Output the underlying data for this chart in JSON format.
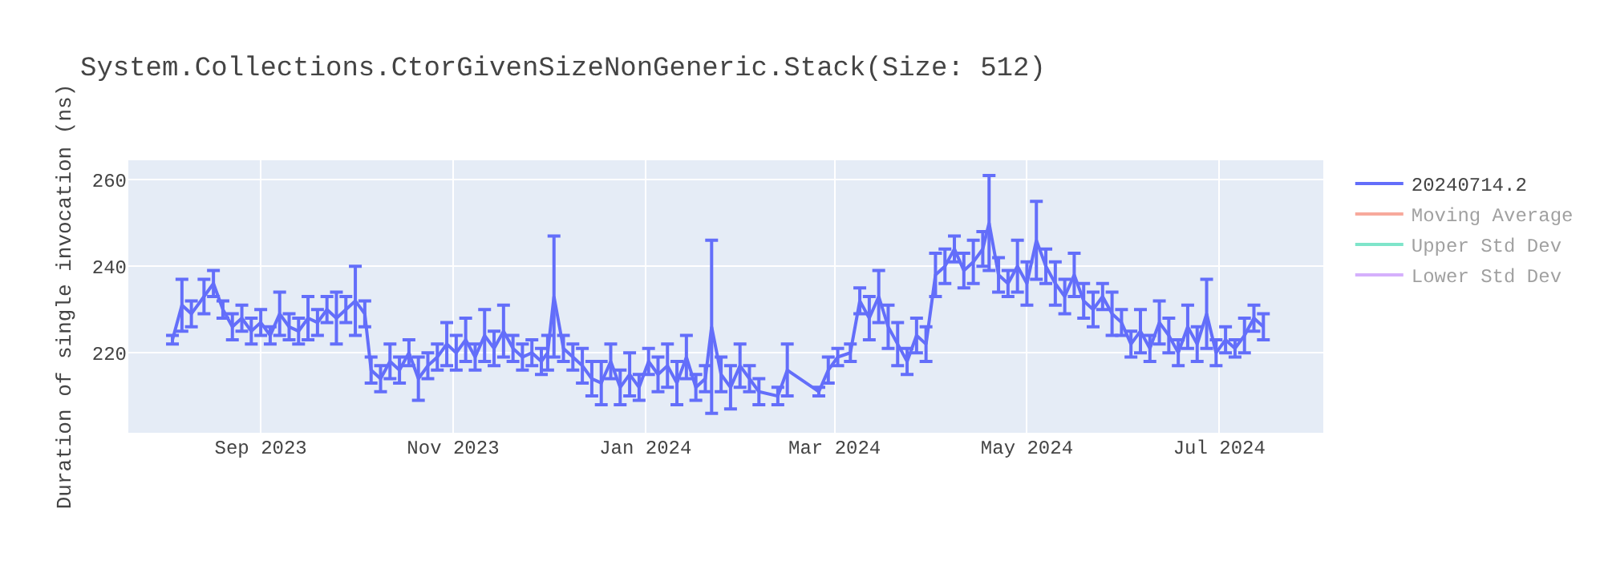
{
  "chart_data": {
    "type": "line",
    "title": "System.Collections.CtorGivenSizeNonGeneric.Stack(Size: 512)",
    "ylabel": "Duration of single invocation (ns)",
    "x": [
      "2023-08-04",
      "2023-08-07",
      "2023-08-10",
      "2023-08-14",
      "2023-08-17",
      "2023-08-20",
      "2023-08-23",
      "2023-08-26",
      "2023-08-29",
      "2023-09-01",
      "2023-09-04",
      "2023-09-07",
      "2023-09-10",
      "2023-09-13",
      "2023-09-16",
      "2023-09-19",
      "2023-09-22",
      "2023-09-25",
      "2023-09-28",
      "2023-10-01",
      "2023-10-04",
      "2023-10-06",
      "2023-10-09",
      "2023-10-12",
      "2023-10-15",
      "2023-10-18",
      "2023-10-21",
      "2023-10-24",
      "2023-10-27",
      "2023-10-30",
      "2023-11-02",
      "2023-11-05",
      "2023-11-08",
      "2023-11-11",
      "2023-11-14",
      "2023-11-17",
      "2023-11-20",
      "2023-11-23",
      "2023-11-26",
      "2023-11-29",
      "2023-12-01",
      "2023-12-03",
      "2023-12-06",
      "2023-12-09",
      "2023-12-12",
      "2023-12-15",
      "2023-12-18",
      "2023-12-21",
      "2023-12-24",
      "2023-12-27",
      "2023-12-30",
      "2024-01-02",
      "2024-01-05",
      "2024-01-08",
      "2024-01-11",
      "2024-01-14",
      "2024-01-17",
      "2024-01-20",
      "2024-01-22",
      "2024-01-25",
      "2024-01-28",
      "2024-01-31",
      "2024-02-03",
      "2024-02-06",
      "2024-02-12",
      "2024-02-15",
      "2024-02-25",
      "2024-02-28",
      "2024-03-02",
      "2024-03-06",
      "2024-03-09",
      "2024-03-12",
      "2024-03-15",
      "2024-03-18",
      "2024-03-21",
      "2024-03-24",
      "2024-03-27",
      "2024-03-30",
      "2024-04-02",
      "2024-04-05",
      "2024-04-08",
      "2024-04-11",
      "2024-04-14",
      "2024-04-17",
      "2024-04-19",
      "2024-04-22",
      "2024-04-25",
      "2024-04-28",
      "2024-05-01",
      "2024-05-04",
      "2024-05-07",
      "2024-05-10",
      "2024-05-13",
      "2024-05-16",
      "2024-05-19",
      "2024-05-22",
      "2024-05-25",
      "2024-05-28",
      "2024-05-31",
      "2024-06-03",
      "2024-06-06",
      "2024-06-09",
      "2024-06-12",
      "2024-06-15",
      "2024-06-18",
      "2024-06-21",
      "2024-06-24",
      "2024-06-27",
      "2024-06-30",
      "2024-07-03",
      "2024-07-06",
      "2024-07-09",
      "2024-07-12",
      "2024-07-15"
    ],
    "series": [
      {
        "name": "20240714.2",
        "color": "#636efa",
        "values": [
          223,
          231,
          229,
          233,
          236,
          230,
          226,
          228,
          225,
          227,
          224,
          229,
          226,
          225,
          228,
          227,
          230,
          228,
          230,
          232,
          229,
          216,
          214,
          218,
          216,
          220,
          214,
          217,
          219,
          222,
          220,
          223,
          219,
          224,
          221,
          225,
          221,
          219,
          220,
          218,
          220,
          233,
          221,
          219,
          217,
          214,
          213,
          218,
          212,
          215,
          212,
          218,
          215,
          217,
          213,
          219,
          212,
          214,
          226,
          215,
          212,
          217,
          214,
          211,
          210,
          216,
          211,
          216,
          219,
          220,
          232,
          228,
          233,
          226,
          222,
          218,
          224,
          222,
          238,
          240,
          244,
          239,
          241,
          244,
          250,
          238,
          236,
          240,
          236,
          246,
          240,
          236,
          233,
          238,
          232,
          230,
          233,
          229,
          227,
          222,
          225,
          221,
          227,
          224,
          220,
          226,
          222,
          229,
          220,
          223,
          221,
          224,
          228,
          226
        ],
        "errors": [
          1,
          6,
          3,
          4,
          3,
          2,
          3,
          3,
          3,
          3,
          2,
          5,
          3,
          3,
          5,
          3,
          3,
          6,
          3,
          8,
          3,
          3,
          3,
          4,
          3,
          3,
          5,
          3,
          3,
          5,
          4,
          5,
          3,
          6,
          4,
          6,
          3,
          3,
          3,
          3,
          4,
          14,
          3,
          3,
          4,
          4,
          5,
          4,
          4,
          5,
          3,
          3,
          4,
          5,
          5,
          5,
          3,
          3,
          20,
          4,
          5,
          5,
          3,
          3,
          2,
          6,
          1,
          3,
          2,
          2,
          3,
          5,
          6,
          5,
          5,
          3,
          4,
          4,
          5,
          4,
          3,
          4,
          5,
          4,
          11,
          4,
          3,
          6,
          5,
          9,
          4,
          5,
          4,
          5,
          4,
          4,
          3,
          5,
          3,
          3,
          5,
          3,
          5,
          4,
          3,
          5,
          4,
          8,
          3,
          3,
          2,
          4,
          3,
          3
        ]
      },
      {
        "name": "Moving Average",
        "color": "#ef553b",
        "values": [
          null,
          null,
          null,
          null,
          null,
          null,
          null,
          null,
          null,
          null,
          null,
          null,
          null,
          null,
          null,
          null,
          null,
          null,
          null,
          null,
          null,
          null,
          null,
          null,
          null,
          null,
          null,
          null,
          null,
          null,
          null,
          null,
          null,
          null,
          null,
          null,
          null,
          null,
          null,
          null,
          null,
          null,
          null,
          null,
          null,
          null,
          null,
          null,
          null,
          null,
          null,
          null,
          null,
          null,
          null,
          null,
          null,
          null,
          null,
          null,
          null,
          null,
          null,
          null,
          null,
          null,
          null,
          null,
          null,
          null,
          null,
          null,
          null,
          null,
          null,
          null,
          null,
          null,
          null,
          null,
          null,
          null,
          null,
          null,
          null,
          null,
          null,
          null,
          null,
          null,
          null,
          null,
          null,
          null,
          null,
          null,
          null,
          null,
          null,
          null,
          null,
          null,
          null,
          null,
          null,
          null,
          null,
          null,
          null,
          null,
          null,
          null,
          null,
          null
        ]
      },
      {
        "name": "Upper Std Dev",
        "color": "#00cc96",
        "values": [
          null,
          null,
          null,
          null,
          null,
          null,
          null,
          null,
          null,
          null,
          null,
          null,
          null,
          null,
          null,
          null,
          null,
          null,
          null,
          null,
          null,
          null,
          null,
          null,
          null,
          null,
          null,
          null,
          null,
          null,
          null,
          null,
          null,
          null,
          null,
          null,
          null,
          null,
          null,
          null,
          null,
          null,
          null,
          null,
          null,
          null,
          null,
          null,
          null,
          null,
          null,
          null,
          null,
          null,
          null,
          null,
          null,
          null,
          null,
          null,
          null,
          null,
          null,
          null,
          null,
          null,
          null,
          null,
          null,
          null,
          null,
          null,
          null,
          null,
          null,
          null,
          null,
          null,
          null,
          null,
          null,
          null,
          null,
          null,
          null,
          null,
          null,
          null,
          null,
          null,
          null,
          null,
          null,
          null,
          null,
          null,
          null,
          null,
          null,
          null,
          null,
          null,
          null,
          null,
          null,
          null,
          null,
          null,
          null,
          null,
          null,
          null,
          null,
          null
        ]
      },
      {
        "name": "Lower Std Dev",
        "color": "#ab63fa",
        "values": [
          null,
          null,
          null,
          null,
          null,
          null,
          null,
          null,
          null,
          null,
          null,
          null,
          null,
          null,
          null,
          null,
          null,
          null,
          null,
          null,
          null,
          null,
          null,
          null,
          null,
          null,
          null,
          null,
          null,
          null,
          null,
          null,
          null,
          null,
          null,
          null,
          null,
          null,
          null,
          null,
          null,
          null,
          null,
          null,
          null,
          null,
          null,
          null,
          null,
          null,
          null,
          null,
          null,
          null,
          null,
          null,
          null,
          null,
          null,
          null,
          null,
          null,
          null,
          null,
          null,
          null,
          null,
          null,
          null,
          null,
          null,
          null,
          null,
          null,
          null,
          null,
          null,
          null,
          null,
          null,
          null,
          null,
          null,
          null,
          null,
          null,
          null,
          null,
          null,
          null,
          null,
          null,
          null,
          null,
          null,
          null,
          null,
          null,
          null,
          null,
          null,
          null,
          null,
          null,
          null,
          null,
          null,
          null,
          null,
          null,
          null,
          null,
          null,
          null
        ]
      }
    ],
    "xlim": [
      "2023-07-21",
      "2024-08-03"
    ],
    "xticks": [
      {
        "value": "2023-09-01",
        "label": "Sep 2023"
      },
      {
        "value": "2023-11-01",
        "label": "Nov 2023"
      },
      {
        "value": "2024-01-01",
        "label": "Jan 2024"
      },
      {
        "value": "2024-03-01",
        "label": "Mar 2024"
      },
      {
        "value": "2024-05-01",
        "label": "May 2024"
      },
      {
        "value": "2024-07-01",
        "label": "Jul 2024"
      }
    ],
    "ylim": [
      201.5,
      264.5
    ],
    "yticks": [
      220,
      240,
      260
    ],
    "grid": true,
    "legend": "top right",
    "marker": "none",
    "line_style": "solid"
  }
}
